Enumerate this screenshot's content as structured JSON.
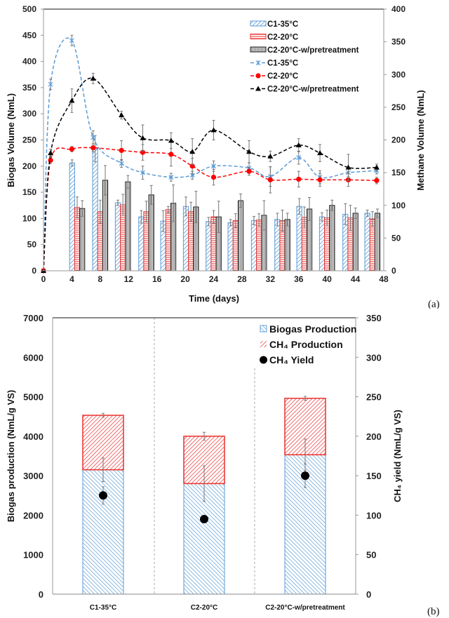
{
  "chart_data": [
    {
      "type": "bar+line",
      "panel_label": "(a)",
      "xlabel": "Time (days)",
      "ylabel": "Biogas Volume (NmL)",
      "y2label": "Methane Volume (NmL)",
      "xlim": [
        0,
        48
      ],
      "ylim": [
        0,
        500
      ],
      "y2lim": [
        0,
        400
      ],
      "xticks": [
        "0",
        "4",
        "8",
        "12",
        "16",
        "20",
        "24",
        "28",
        "32",
        "36",
        "40",
        "44",
        "48"
      ],
      "yticks": [
        "0",
        "50",
        "100",
        "150",
        "200",
        "250",
        "300",
        "350",
        "400",
        "450",
        "500"
      ],
      "y2ticks": [
        "0",
        "50",
        "100",
        "150",
        "200",
        "250",
        "300",
        "350",
        "400"
      ],
      "grid": false,
      "legend_placement": "top-right",
      "bar_x": [
        4.75,
        8.0,
        11.2,
        14.5,
        17.6,
        20.8,
        24.0,
        27.1,
        30.4,
        33.7,
        36.8,
        40.0,
        43.3,
        46.4
      ],
      "bar_series": [
        {
          "name": "C1-35°C",
          "axis": "left",
          "color": "#5b9bd5",
          "pattern": "diagonal",
          "values": [
            206,
            233,
            130,
            103,
            95,
            123,
            94,
            92,
            96,
            98,
            123,
            103,
            108,
            110
          ],
          "errors": [
            6,
            25,
            5,
            12,
            20,
            18,
            8,
            6,
            8,
            12,
            15,
            8,
            20,
            6
          ]
        },
        {
          "name": "C2-20°C",
          "axis": "left",
          "color": "#e8312f",
          "pattern": "horizontal",
          "values": [
            121,
            113,
            126,
            113,
            117,
            113,
            103,
            96,
            97,
            96,
            102,
            101,
            101,
            99
          ],
          "errors": [
            20,
            22,
            20,
            20,
            6,
            18,
            12,
            13,
            12,
            20,
            20,
            15,
            24,
            14
          ]
        },
        {
          "name": "C2-20°C-w/pretreatment",
          "axis": "left",
          "color": "#a6a6a6",
          "pattern": "vertical",
          "values": [
            119,
            173,
            170,
            145,
            129,
            122,
            103,
            134,
            106,
            98,
            118,
            125,
            110,
            110
          ],
          "errors": [
            15,
            28,
            12,
            18,
            35,
            30,
            30,
            13,
            28,
            12,
            22,
            10,
            10,
            8
          ]
        }
      ],
      "line_series": [
        {
          "name": "C1-35°C",
          "axis": "right",
          "color": "#5b9bd5",
          "marker": "asterisk",
          "x": [
            0,
            1,
            4,
            7,
            11,
            14,
            18,
            21,
            24,
            29,
            32,
            36,
            39,
            43,
            47
          ],
          "values": [
            0,
            285,
            352,
            204,
            164,
            150,
            143,
            146,
            160,
            157,
            144,
            173,
            143,
            150,
            153
          ],
          "errors": [
            0,
            8,
            8,
            10,
            6,
            10,
            6,
            6,
            8,
            8,
            15,
            10,
            10,
            6,
            5
          ]
        },
        {
          "name": "C2-20°C",
          "axis": "right",
          "color": "#ff0000",
          "marker": "circle",
          "x": [
            0,
            1,
            4,
            7,
            11,
            14,
            18,
            21,
            24,
            29,
            32,
            36,
            39,
            43,
            47
          ],
          "values": [
            0,
            169,
            186,
            188,
            184,
            181,
            178,
            160,
            143,
            152,
            139,
            140,
            139,
            139,
            138
          ],
          "errors": [
            0,
            5,
            4,
            6,
            15,
            12,
            18,
            12,
            12,
            6,
            20,
            12,
            10,
            10,
            5
          ]
        },
        {
          "name": "C2-20°C-w/pretreatment",
          "axis": "right",
          "color": "#000000",
          "marker": "triangle",
          "x": [
            0,
            1,
            4,
            7,
            11,
            14,
            18,
            21,
            24,
            29,
            32,
            36,
            39,
            43,
            47
          ],
          "values": [
            0,
            180,
            260,
            294,
            238,
            203,
            199,
            182,
            215,
            182,
            175,
            192,
            180,
            158,
            158
          ],
          "errors": [
            0,
            6,
            18,
            8,
            6,
            20,
            12,
            20,
            15,
            17,
            8,
            10,
            13,
            20,
            5
          ]
        }
      ]
    },
    {
      "type": "stacked-bar+scatter",
      "panel_label": "(b)",
      "ylabel": "Biogas production (NmL/g VS)",
      "y2label": "CH₄  yield (NmL/g VS)",
      "ylim": [
        0,
        7000
      ],
      "y2lim": [
        0,
        350
      ],
      "yticks": [
        "0",
        "1000",
        "2000",
        "3000",
        "4000",
        "5000",
        "6000",
        "7000"
      ],
      "y2ticks": [
        "0",
        "50",
        "100",
        "150",
        "200",
        "250",
        "300",
        "350"
      ],
      "categories": [
        "C1-35°C",
        "C2-20°C",
        "C2-20°C-w/pretreatment"
      ],
      "grid": false,
      "legend_placement": "top-right",
      "series": [
        {
          "name": "Biogas Production",
          "axis": "left",
          "color": "#5b9bd5",
          "values": [
            3150,
            2800,
            3530
          ],
          "errors": [
            300,
            450,
            400
          ]
        },
        {
          "name": "CH₄ Production",
          "axis": "left",
          "color": "#e8312f",
          "stacked": true,
          "values": [
            1380,
            1200,
            1430
          ],
          "errors": [
            50,
            100,
            50
          ]
        },
        {
          "name": "CH₄ Yield",
          "axis": "right",
          "color": "#000000",
          "marker": "circle",
          "values": [
            125,
            95,
            150
          ],
          "errors": [
            11,
            0,
            15
          ]
        }
      ]
    }
  ]
}
